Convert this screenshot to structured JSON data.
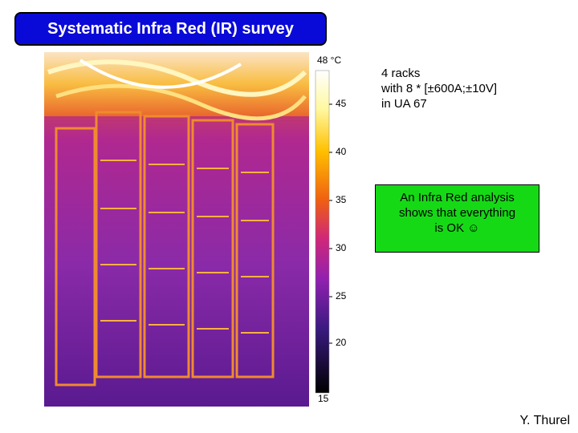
{
  "header": {
    "title": "Systematic Infra Red (IR) survey"
  },
  "scale": {
    "unit_label": "48 °C",
    "labels": [
      "45",
      "40",
      "35",
      "30",
      "25",
      "20",
      "15"
    ]
  },
  "notes": {
    "lines": [
      "4 racks",
      "with 8 * [±600A;±10V]",
      "in UA 67"
    ]
  },
  "callout": {
    "lines": [
      "An Infra Red analysis",
      "shows that everything",
      "is OK ☺"
    ]
  },
  "footer": {
    "author": "Y. Thurel"
  }
}
